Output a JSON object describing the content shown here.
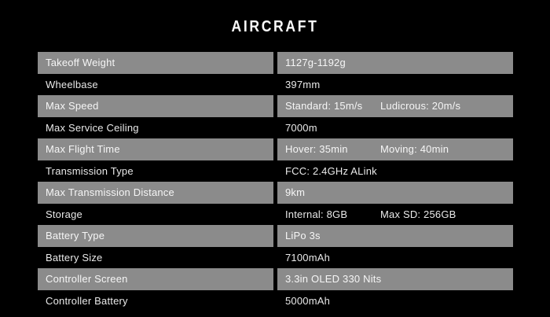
{
  "page": {
    "title": "AIRCRAFT",
    "colors": {
      "background": "#000000",
      "highlight_row": "#8b8b8b",
      "text_on_highlight": "#f6f6f6",
      "text_on_dark": "#e9e9e9",
      "title_text": "#fafafa"
    }
  },
  "table": {
    "rows": [
      {
        "label": "Takeoff Weight",
        "values": [
          "1127g-1192g"
        ],
        "highlighted": true
      },
      {
        "label": "Wheelbase",
        "values": [
          "397mm"
        ],
        "highlighted": false
      },
      {
        "label": "Max Speed",
        "values": [
          "Standard: 15m/s",
          "Ludicrous: 20m/s"
        ],
        "highlighted": true
      },
      {
        "label": "Max Service Ceiling",
        "values": [
          "7000m"
        ],
        "highlighted": false
      },
      {
        "label": "Max Flight Time",
        "values": [
          "Hover: 35min",
          "Moving: 40min"
        ],
        "highlighted": true
      },
      {
        "label": "Transmission Type",
        "values": [
          "FCC: 2.4GHz ALink"
        ],
        "highlighted": false
      },
      {
        "label": "Max Transmission Distance",
        "values": [
          "9km"
        ],
        "highlighted": true
      },
      {
        "label": "Storage",
        "values": [
          "Internal: 8GB",
          "Max SD: 256GB"
        ],
        "highlighted": false
      },
      {
        "label": "Battery Type",
        "values": [
          "LiPo 3s"
        ],
        "highlighted": true
      },
      {
        "label": "Battery Size",
        "values": [
          "7100mAh"
        ],
        "highlighted": false
      },
      {
        "label": "Controller Screen",
        "values": [
          "3.3in OLED 330 Nits"
        ],
        "highlighted": true
      },
      {
        "label": "Controller Battery",
        "values": [
          "5000mAh"
        ],
        "highlighted": false
      }
    ]
  }
}
